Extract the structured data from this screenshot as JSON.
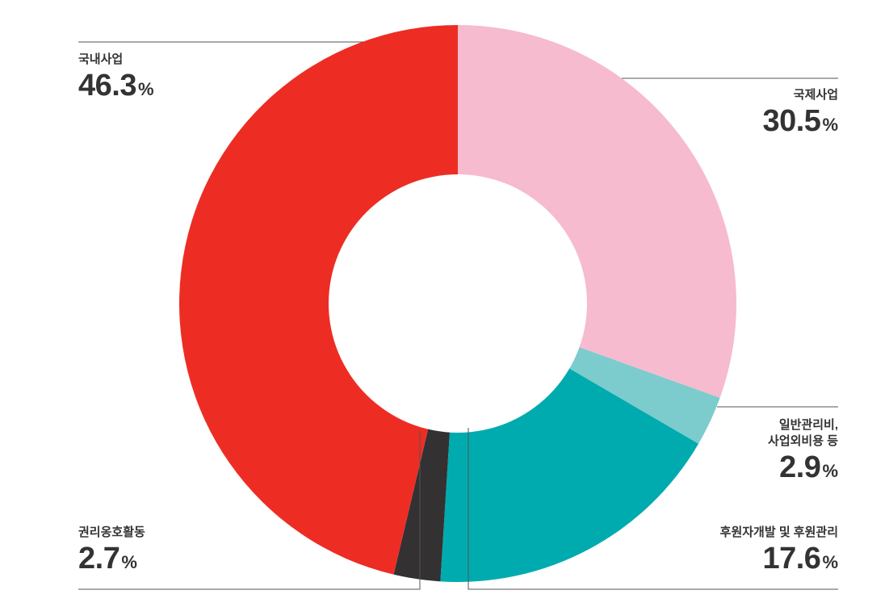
{
  "chart_data": {
    "type": "pie",
    "donut": true,
    "start": "12 o'clock",
    "direction": "clockwise",
    "unit": "%",
    "slices": [
      {
        "name": "국제사업",
        "value": 30.5,
        "color": "#f6bbcf"
      },
      {
        "name": "일반관리비,\n사업외비용 등",
        "value": 2.9,
        "color": "#7ccccd"
      },
      {
        "name": "후원자개발 및 후원관리",
        "value": 17.6,
        "color": "#00abaf"
      },
      {
        "name": "권리옹호활동",
        "value": 2.7,
        "color": "#333132"
      },
      {
        "name": "국내사업",
        "value": 46.3,
        "color": "#ed2d24"
      }
    ]
  },
  "colors": {
    "leader_line": "#555555",
    "text": "#333333"
  }
}
